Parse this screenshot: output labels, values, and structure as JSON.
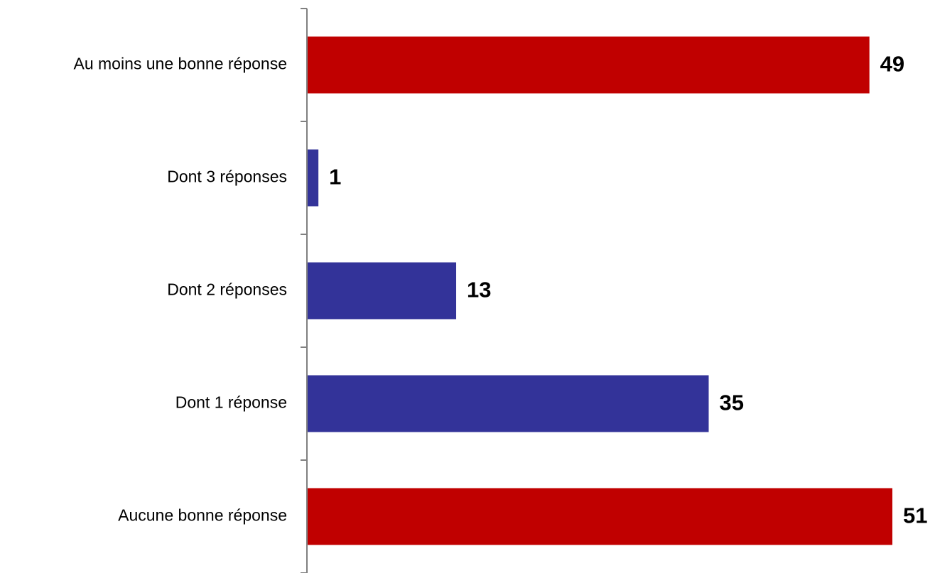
{
  "chart_data": {
    "type": "bar",
    "orientation": "horizontal",
    "categories": [
      "Au moins une bonne réponse",
      "Dont 3 réponses",
      "Dont 2 réponses",
      "Dont 1 réponse",
      "Aucune bonne réponse"
    ],
    "values": [
      49,
      1,
      13,
      35,
      51
    ],
    "bar_colors": [
      "#C00000",
      "#333399",
      "#333399",
      "#333399",
      "#C00000"
    ],
    "data_labels": [
      "49",
      "1",
      "13",
      "35",
      "51"
    ],
    "xlim": [
      0,
      51
    ],
    "grid": false,
    "legend": "none"
  }
}
